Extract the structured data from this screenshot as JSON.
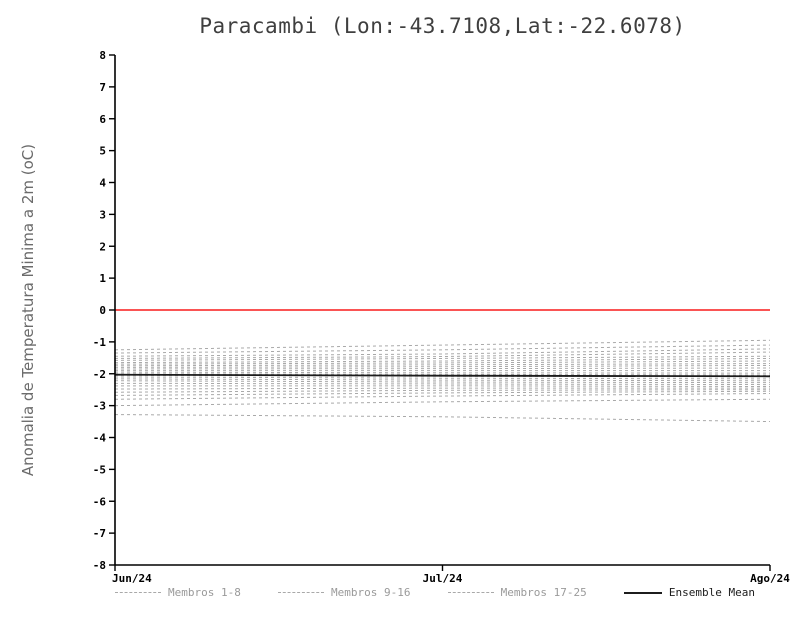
{
  "chart_data": {
    "type": "line",
    "title": "Paracambi (Lon:-43.7108,Lat:-22.6078)",
    "ylabel": "Anomalia de Temperatura Minima a 2m (oC)",
    "xlabel": "",
    "ylim": [
      -8,
      8
    ],
    "ytick_step": 1,
    "x_categories": [
      "Jun/24",
      "Jul/24",
      "Ago/24"
    ],
    "grid": false,
    "legend_position": "bottom",
    "zero_line_y": 0,
    "colors": {
      "zero_line": "#fa3c3c",
      "members": "#a9a9a9",
      "mean": "#1c1c1c",
      "axis": "#000000",
      "tick_text": "#000000",
      "title_text": "#3f3f3f",
      "ylabel_text": "#6b6b6b"
    },
    "members": [
      [
        -1.25,
        -1.1,
        -0.95
      ],
      [
        -1.35,
        -1.25,
        -1.1
      ],
      [
        -1.45,
        -1.38,
        -1.22
      ],
      [
        -1.52,
        -1.46,
        -1.32
      ],
      [
        -1.58,
        -1.52,
        -1.45
      ],
      [
        -1.65,
        -1.6,
        -1.52
      ],
      [
        -1.7,
        -1.66,
        -1.6
      ],
      [
        -1.75,
        -1.72,
        -1.68
      ],
      [
        -1.8,
        -1.78,
        -1.74
      ],
      [
        -1.85,
        -1.84,
        -1.82
      ],
      [
        -1.9,
        -1.9,
        -1.9
      ],
      [
        -1.95,
        -1.97,
        -1.98
      ],
      [
        -2.0,
        -2.02,
        -2.04
      ],
      [
        -2.05,
        -2.08,
        -2.1
      ],
      [
        -2.1,
        -2.14,
        -2.16
      ],
      [
        -2.16,
        -2.2,
        -2.22
      ],
      [
        -2.22,
        -2.26,
        -2.28
      ],
      [
        -2.3,
        -2.32,
        -2.34
      ],
      [
        -2.38,
        -2.38,
        -2.4
      ],
      [
        -2.48,
        -2.45,
        -2.45
      ],
      [
        -2.58,
        -2.52,
        -2.5
      ],
      [
        -2.68,
        -2.6,
        -2.55
      ],
      [
        -2.8,
        -2.7,
        -2.62
      ],
      [
        -3.0,
        -2.88,
        -2.8
      ],
      [
        -3.28,
        -3.35,
        -3.5
      ]
    ],
    "ensemble_mean": [
      -2.03,
      -2.06,
      -2.08
    ],
    "legend": [
      {
        "label": "Membros 1-8",
        "style": "dashed",
        "color": "#a9a9a9",
        "text_color": "#9a9a9a"
      },
      {
        "label": "Membros 9-16",
        "style": "dashed",
        "color": "#a9a9a9",
        "text_color": "#9a9a9a"
      },
      {
        "label": "Membros 17-25",
        "style": "dashed",
        "color": "#a9a9a9",
        "text_color": "#9a9a9a"
      },
      {
        "label": "Ensemble Mean",
        "style": "solid",
        "color": "#1c1c1c",
        "text_color": "#1c1c1c"
      }
    ]
  }
}
